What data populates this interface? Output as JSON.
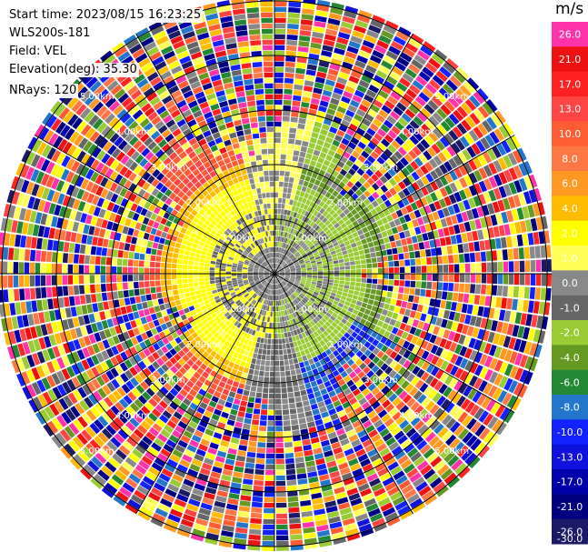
{
  "header": {
    "start_time": "Start time: 2023/08/15 16:23:25",
    "station": "WLS200s-181",
    "field": "Field: VEL",
    "elevation": "Elevation(deg): 35.30",
    "nrays": "NRays: 120"
  },
  "chart_data": {
    "type": "heatmap",
    "projection": "polar-ppi",
    "field": "VEL",
    "unit": "m/s",
    "value_range": [
      -30.0,
      26.0
    ],
    "range_labels": [
      "1.00km",
      "2.00km",
      "3.00km",
      "4.00km",
      "5.00km"
    ],
    "colorbar": {
      "label": "m/s",
      "ticks": [
        "26.0",
        "21.0",
        "17.0",
        "13.0",
        "10.0",
        "8.0",
        "6.0",
        "4.0",
        "2.0",
        "1.0",
        "0.0",
        "-1.0",
        "-2.0",
        "-4.0",
        "-6.0",
        "-8.0",
        "-10.0",
        "-13.0",
        "-17.0",
        "-21.0",
        "-26.0",
        "-30.0"
      ],
      "colors": [
        "#ff33aa",
        "#ee1111",
        "#ff2222",
        "#ff4444",
        "#ff5c33",
        "#ff7744",
        "#ff9922",
        "#ffbb00",
        "#ffff00",
        "#ffff55",
        "#888888",
        "#666666",
        "#99cc33",
        "#669922",
        "#228833",
        "#2277cc",
        "#1122ff",
        "#1111dd",
        "#0000aa",
        "#000080",
        "#1a1a66"
      ]
    }
  }
}
